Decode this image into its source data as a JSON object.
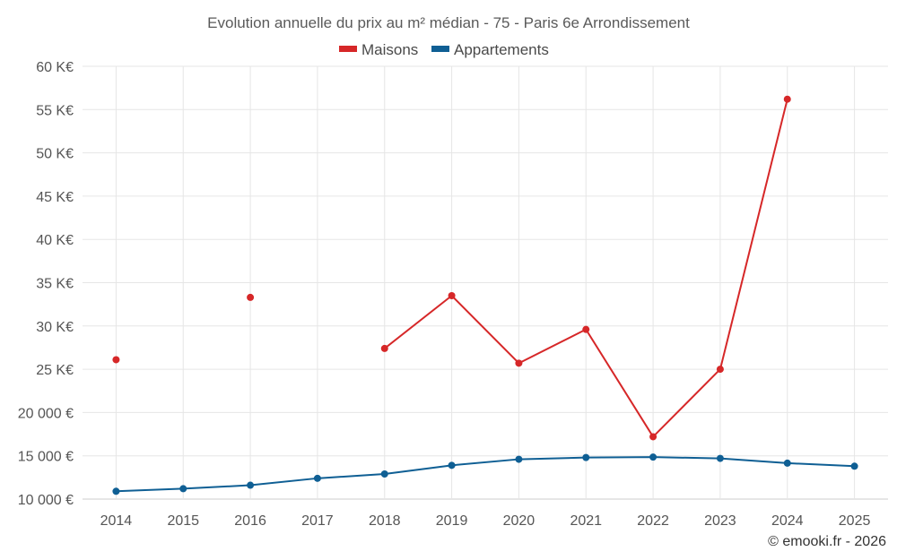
{
  "credit": "© emooki.fr - 2026",
  "chart_data": {
    "type": "line",
    "title": "Evolution annuelle du prix au m² médian - 75 - Paris 6e Arrondissement",
    "categories": [
      "2014",
      "2015",
      "2016",
      "2017",
      "2018",
      "2019",
      "2020",
      "2021",
      "2022",
      "2023",
      "2024",
      "2025"
    ],
    "ylim": [
      10000,
      60000
    ],
    "y_ticks": [
      10000,
      15000,
      20000,
      25000,
      30000,
      35000,
      40000,
      45000,
      50000,
      55000,
      60000
    ],
    "y_tick_labels": [
      "10 000 €",
      "15 000 €",
      "20 000 €",
      "25 K€",
      "30 K€",
      "35 K€",
      "40 K€",
      "45 K€",
      "50 K€",
      "55 K€",
      "60 K€"
    ],
    "legend_position": "top-center",
    "grid": true,
    "series": [
      {
        "name": "Maisons",
        "color": "#d62728",
        "values": [
          26100,
          null,
          33300,
          null,
          27400,
          33500,
          25700,
          29600,
          17200,
          25000,
          56200,
          null
        ]
      },
      {
        "name": "Appartements",
        "color": "#0f5f94",
        "values": [
          10900,
          11200,
          11600,
          12400,
          12900,
          13900,
          14600,
          14800,
          14850,
          14700,
          14150,
          13800
        ]
      }
    ]
  }
}
